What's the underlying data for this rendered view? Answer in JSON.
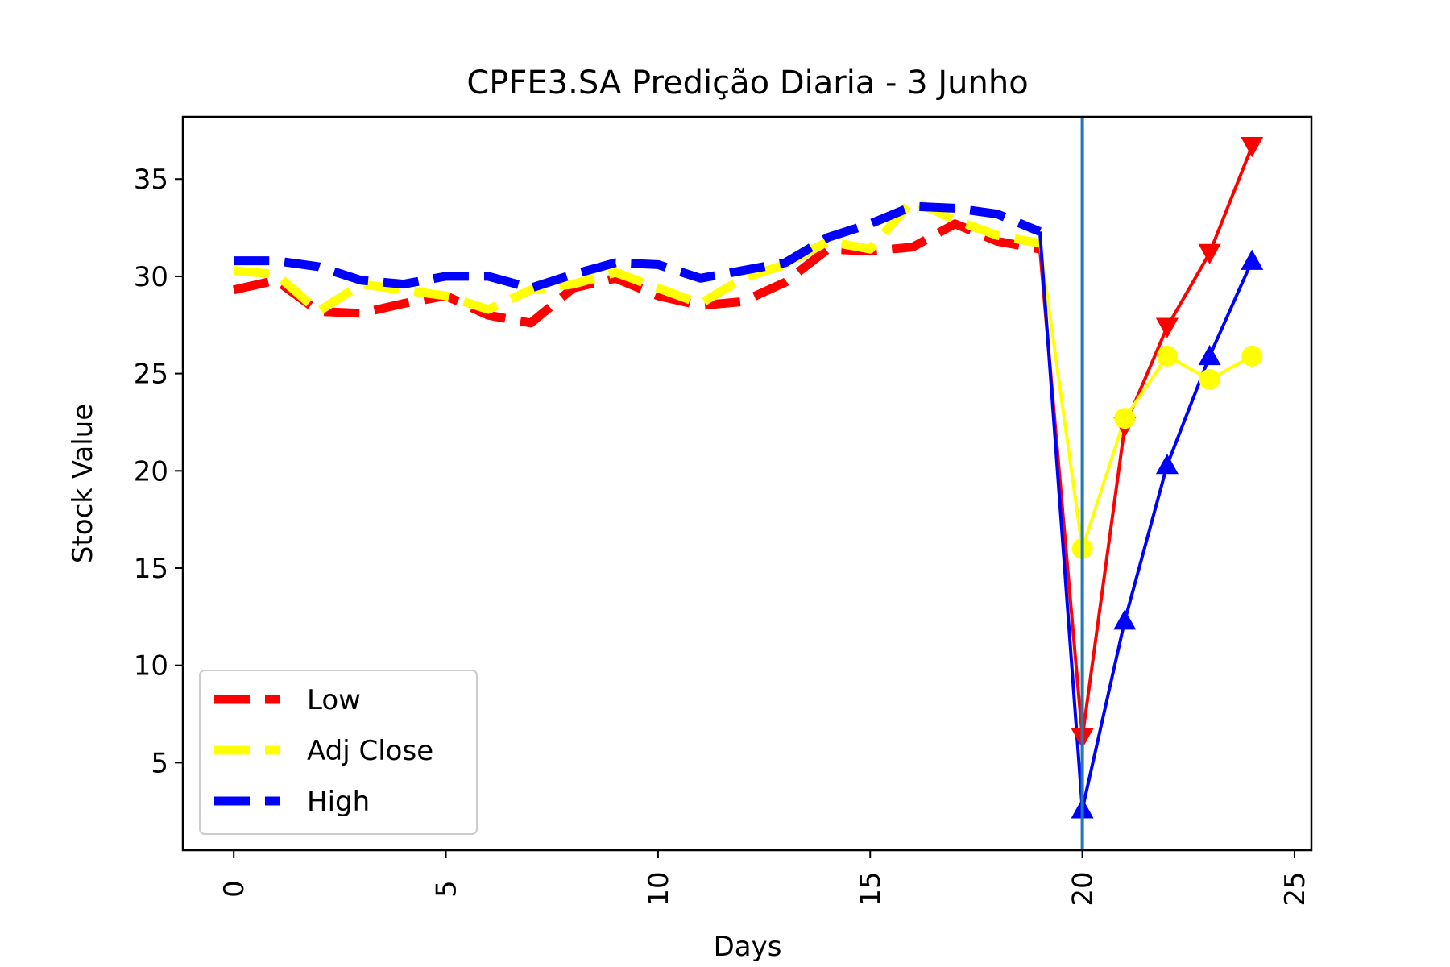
{
  "chart_data": {
    "type": "line",
    "title": "CPFE3.SA Predição Diaria - 3 Junho",
    "xlabel": "Days",
    "ylabel": "Stock Value",
    "xlim": [
      -1.2,
      25.4
    ],
    "ylim": [
      0.5,
      38.2
    ],
    "xticks": [
      0,
      5,
      10,
      15,
      20,
      25
    ],
    "yticks": [
      5,
      10,
      15,
      20,
      25,
      30,
      35
    ],
    "grid": false,
    "legend_position": "lower-left",
    "vertical_line": {
      "x": 20,
      "color": "#1f77b4"
    },
    "series": [
      {
        "name": "Low",
        "color": "#ff0000",
        "style": "dashed",
        "x": [
          0,
          1,
          2,
          3,
          4,
          5,
          6,
          7,
          8,
          9,
          10,
          11,
          12,
          13,
          14,
          15,
          16,
          17,
          18,
          19
        ],
        "values": [
          29.3,
          29.8,
          28.2,
          28.1,
          28.6,
          29.0,
          28.0,
          27.6,
          29.4,
          29.9,
          29.0,
          28.5,
          28.7,
          29.7,
          31.4,
          31.3,
          31.5,
          32.7,
          31.8,
          31.4
        ]
      },
      {
        "name": "Adj Close",
        "color": "#ffff00",
        "style": "dashed",
        "x": [
          0,
          1,
          2,
          3,
          4,
          5,
          6,
          7,
          8,
          9,
          10,
          11,
          12,
          13,
          14,
          15,
          16,
          17,
          18,
          19
        ],
        "values": [
          30.3,
          30.1,
          28.2,
          29.6,
          29.3,
          29.0,
          28.3,
          29.3,
          29.6,
          30.2,
          29.4,
          28.6,
          29.9,
          30.6,
          31.8,
          31.4,
          33.9,
          32.9,
          32.1,
          31.7
        ]
      },
      {
        "name": "High",
        "color": "#0000ff",
        "style": "dashed",
        "x": [
          0,
          1,
          2,
          3,
          4,
          5,
          6,
          7,
          8,
          9,
          10,
          11,
          12,
          13,
          14,
          15,
          16,
          17,
          18,
          19
        ],
        "values": [
          30.8,
          30.8,
          30.5,
          29.8,
          29.6,
          30.0,
          30.0,
          29.4,
          30.1,
          30.7,
          30.6,
          29.9,
          30.3,
          30.7,
          32.0,
          32.7,
          33.6,
          33.5,
          33.2,
          32.3
        ]
      },
      {
        "name": "Low",
        "color": "#ff0000",
        "style": "solid",
        "marker": "triangle-down",
        "x": [
          19,
          20,
          21,
          22,
          23,
          24
        ],
        "values": [
          31.4,
          6.3,
          22.3,
          27.4,
          31.2,
          36.7
        ]
      },
      {
        "name": "Adj Close",
        "color": "#ffff00",
        "style": "solid",
        "marker": "circle",
        "x": [
          19,
          20,
          21,
          22,
          23,
          24
        ],
        "values": [
          31.7,
          16.0,
          22.7,
          25.9,
          24.7,
          25.9
        ]
      },
      {
        "name": "High",
        "color": "#0000ff",
        "style": "solid",
        "marker": "triangle-up",
        "x": [
          19,
          20,
          21,
          22,
          23,
          24
        ],
        "values": [
          32.3,
          2.6,
          12.3,
          20.3,
          25.9,
          30.8
        ]
      }
    ],
    "legend": [
      {
        "label": "Low",
        "color": "#ff0000"
      },
      {
        "label": "Adj Close",
        "color": "#ffff00"
      },
      {
        "label": "High",
        "color": "#0000ff"
      }
    ]
  }
}
